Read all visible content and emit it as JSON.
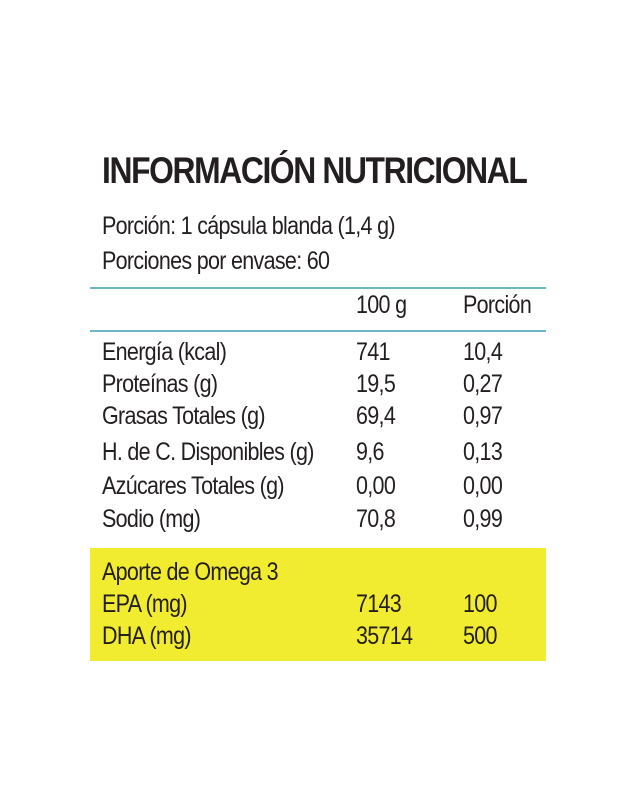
{
  "title": "INFORMACIÓN NUTRICIONAL",
  "serving": {
    "size": "Porción: 1 cápsula blanda (1,4 g)",
    "servings_per_container": "Porciones por envase:   60"
  },
  "columns": {
    "per_100g": "100 g",
    "per_serving": "Porción"
  },
  "nutrients": [
    {
      "name": "Energía (kcal)",
      "per_100g": "741",
      "per_serving": "10,4"
    },
    {
      "name": "Proteínas (g)",
      "per_100g": "19,5",
      "per_serving": "0,27"
    },
    {
      "name": "Grasas Totales (g)",
      "per_100g": "69,4",
      "per_serving": "0,97"
    },
    {
      "name": "H. de C. Disponibles (g)",
      "per_100g": "9,6",
      "per_serving": "0,13"
    },
    {
      "name": "Azúcares Totales (g)",
      "per_100g": "0,00",
      "per_serving": "0,00"
    },
    {
      "name": "Sodio (mg)",
      "per_100g": "70,8",
      "per_serving": "0,99"
    }
  ],
  "omega": {
    "heading": "Aporte de Omega 3",
    "rows": [
      {
        "name": "EPA (mg)",
        "per_100g": "7143",
        "per_serving": "100"
      },
      {
        "name": "DHA (mg)",
        "per_100g": "35714",
        "per_serving": "500"
      }
    ]
  },
  "colors": {
    "text": "#231f20",
    "rule": "#6bb7c4",
    "highlight": "#f2ec31"
  }
}
